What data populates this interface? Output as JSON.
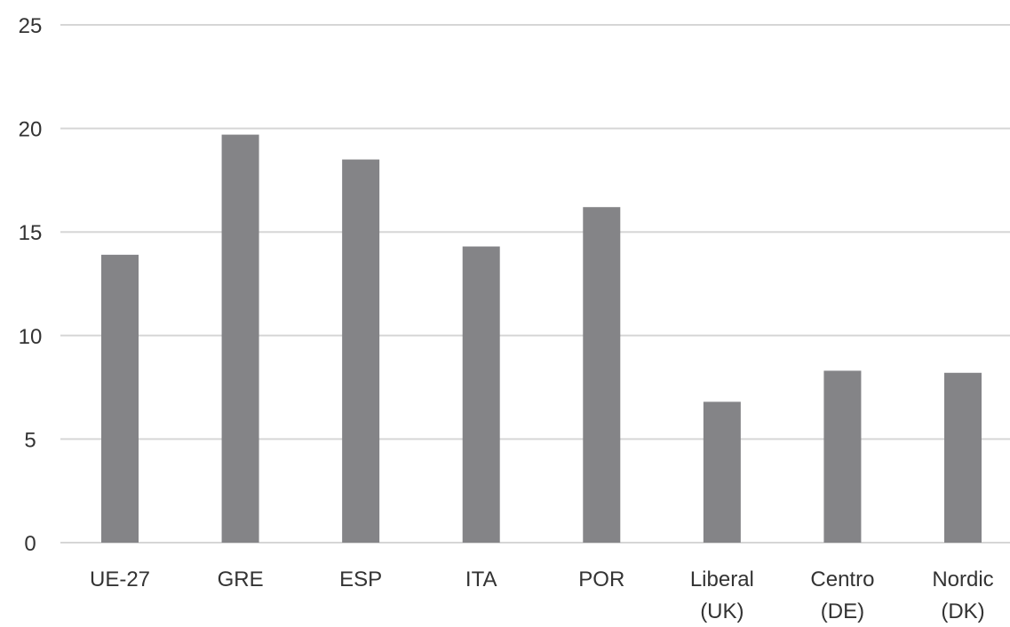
{
  "chart_data": {
    "type": "bar",
    "categories": [
      [
        "UE-27"
      ],
      [
        "GRE"
      ],
      [
        "ESP"
      ],
      [
        "ITA"
      ],
      [
        "POR"
      ],
      [
        "Liberal",
        "(UK)"
      ],
      [
        "Centro",
        "(DE)"
      ],
      [
        "Nordic",
        "(DK)"
      ]
    ],
    "values": [
      13.9,
      19.7,
      18.5,
      14.3,
      16.2,
      6.8,
      8.3,
      8.2
    ],
    "ylim": [
      0,
      25
    ],
    "yticks": [
      0,
      5,
      10,
      15,
      20,
      25
    ],
    "grid": true,
    "legend": "none",
    "bar_color": "#848487",
    "grid_color": "#d6d6d6"
  }
}
